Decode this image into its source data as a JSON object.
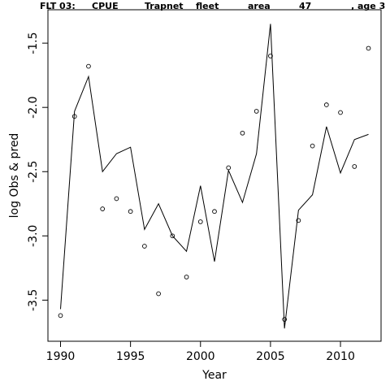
{
  "chart_data": {
    "type": "line",
    "title_parts": [
      "FLT 03:",
      "CPUE",
      "Trapnet",
      "fleet",
      "area",
      "47",
      ", age 3"
    ],
    "xlabel": "Year",
    "ylabel": "log Obs & pred",
    "xlim": [
      1989.1,
      2012.9
    ],
    "ylim": [
      -3.82,
      -1.24
    ],
    "x_ticks": [
      1990,
      1995,
      2000,
      2005,
      2010
    ],
    "x_tick_labels": [
      "1990",
      "1995",
      "2000",
      "2005",
      "2010"
    ],
    "y_ticks": [
      -3.5,
      -3.0,
      -2.5,
      -2.0,
      -1.5
    ],
    "y_tick_labels": [
      "-3.5",
      "-3.0",
      "-2.5",
      "-2.0",
      "-1.5"
    ],
    "series": [
      {
        "style": "points",
        "x": [
          1990,
          1991,
          1992,
          1993,
          1994,
          1995,
          1996,
          1997,
          1998,
          1999,
          2000,
          2001,
          2002,
          2003,
          2004,
          2005,
          2006,
          2007,
          2008,
          2009,
          2010,
          2011,
          2012
        ],
        "values": [
          -3.62,
          -2.07,
          -1.68,
          -2.79,
          -2.71,
          -2.81,
          -3.08,
          -3.45,
          -3.0,
          -3.32,
          -2.89,
          -2.81,
          -2.47,
          -2.2,
          -2.03,
          -1.6,
          -3.65,
          -2.88,
          -2.3,
          -1.98,
          -2.04,
          -2.46,
          -1.54
        ]
      },
      {
        "style": "line",
        "x": [
          1990,
          1991,
          1992,
          1993,
          1994,
          1995,
          1996,
          1997,
          1998,
          1999,
          2000,
          2001,
          2002,
          2003,
          2004,
          2005,
          2006,
          2007,
          2008,
          2009,
          2010,
          2011,
          2012
        ],
        "values": [
          -3.57,
          -2.03,
          -1.76,
          -2.5,
          -2.36,
          -2.31,
          -2.95,
          -2.75,
          -3.0,
          -3.12,
          -2.61,
          -3.2,
          -2.49,
          -2.74,
          -2.36,
          -1.35,
          -3.72,
          -2.8,
          -2.68,
          -2.15,
          -2.51,
          -2.25,
          -2.21
        ]
      }
    ]
  }
}
